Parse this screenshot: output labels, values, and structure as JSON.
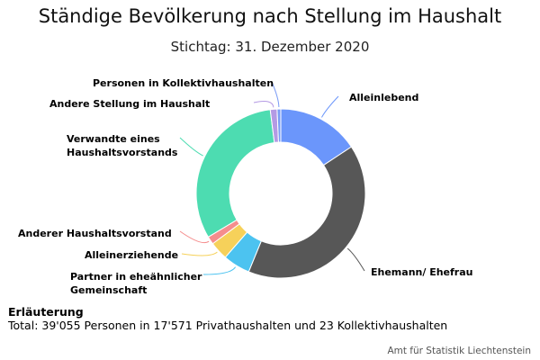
{
  "chart_data": {
    "type": "pie",
    "donut": true,
    "title": "Ständige Bevölkerung nach Stellung im Haushalt",
    "subtitle": "Stichtag: 31. Dezember 2020",
    "slices": [
      {
        "label": "Alleinlebend",
        "value": 15.7,
        "color": "#6b96fb"
      },
      {
        "label": "Ehemann/ Ehefrau",
        "value": 40.5,
        "color": "#575757"
      },
      {
        "label": "Partner in eheähnlicher Gemeinschaft",
        "value": 5.2,
        "color": "#4cc3f0"
      },
      {
        "label": "Alleinerziehende",
        "value": 3.5,
        "color": "#f6d15a"
      },
      {
        "label": "Anderer Haushaltsvorstand",
        "value": 1.5,
        "color": "#f58d8d"
      },
      {
        "label": "Verwandte eines Haushaltsvorstands",
        "value": 31.6,
        "color": "#4ddcb1"
      },
      {
        "label": "Andere Stellung im Haushalt",
        "value": 1.3,
        "color": "#b49ae4"
      },
      {
        "label": "Personen in Kollektivhaushalten",
        "value": 0.7,
        "color": "#7a9cf5"
      }
    ]
  },
  "note": {
    "heading": "Erläuterung",
    "text": "Total: 39'055 Personen in 17'571 Privathaushalten und 23 Kollektivhaushalten"
  },
  "credits": "Amt für Statistik Liechtenstein"
}
